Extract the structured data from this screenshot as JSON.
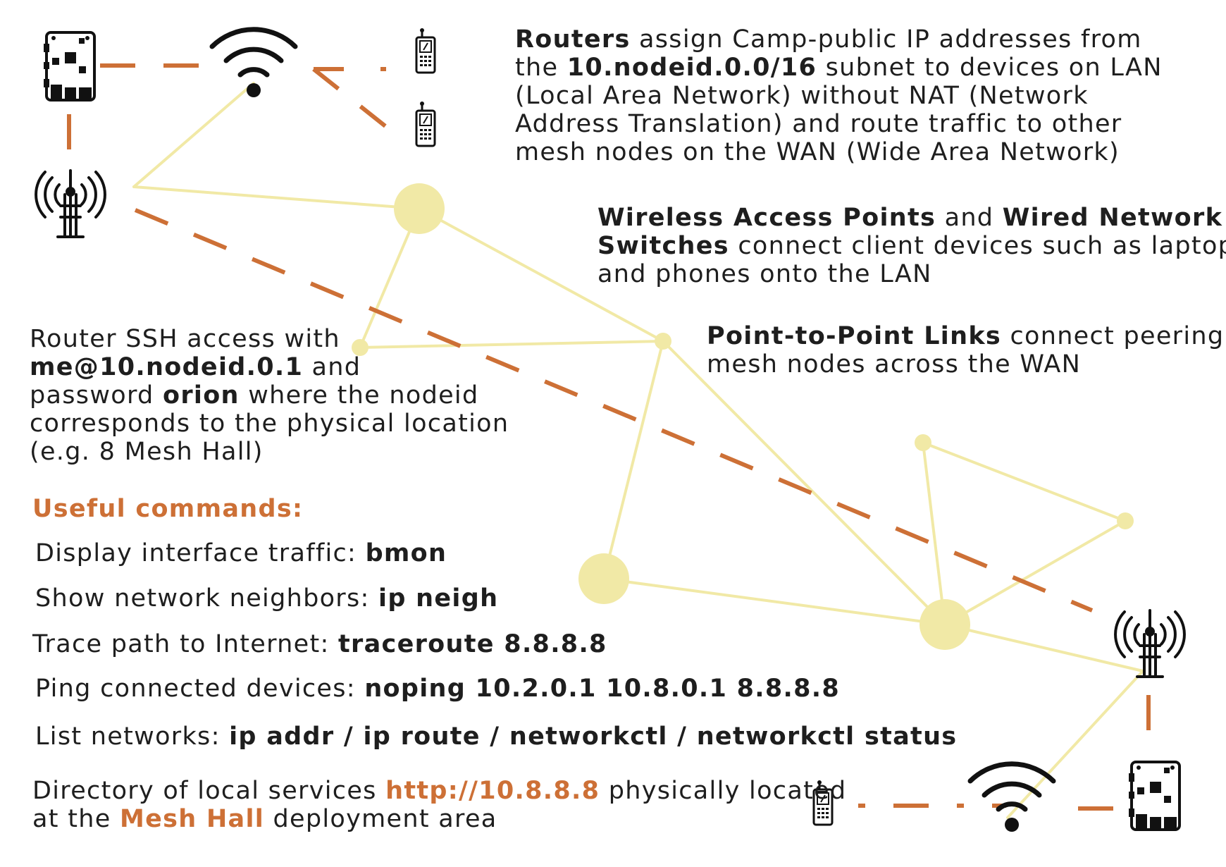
{
  "colors": {
    "accent": "#cd7036",
    "mesh_link": "#f1e9a6",
    "text": "#1e1e1e"
  },
  "icons": [
    "router-board-icon",
    "wifi-icon",
    "phone-icon",
    "antenna-tower-icon"
  ],
  "routers_note": {
    "b1": "Routers",
    "t1": " assign Camp-public IP addresses from",
    "t2": "the ",
    "b2": "10.nodeid.0.0/16",
    "t3": " subnet to devices on LAN",
    "t4": "(Local Area Network) without NAT (Network",
    "t5": "Address Translation) and route traffic to other",
    "t6": "mesh nodes on the WAN (Wide Area Network)"
  },
  "access_note": {
    "b1": "Wireless Access Points",
    "t1": " and ",
    "b2": "Wired Network",
    "b3": "Switches",
    "t2": " connect client devices such as laptops",
    "t3": "and phones onto the LAN"
  },
  "ptp_note": {
    "b1": "Point-to-Point Links",
    "t1": " connect peering",
    "t2": "mesh nodes across the WAN"
  },
  "ssh_note": {
    "t1": "Router SSH access with",
    "b1": "me@10.nodeid.0.1",
    "t2": " and",
    "t3": "password ",
    "b2": "orion",
    "t4": " where the nodeid",
    "t5": "corresponds to the physical location",
    "t6": "(e.g. 8 Mesh Hall)"
  },
  "commands": {
    "heading": "Useful commands:",
    "items": [
      {
        "label": "Display interface traffic: ",
        "command": "bmon"
      },
      {
        "label": "Show network neighbors: ",
        "command": "ip neigh"
      },
      {
        "label": "Trace path to Internet: ",
        "command": "traceroute 8.8.8.8"
      },
      {
        "label": "Ping connected devices: ",
        "command": "noping 10.2.0.1 10.8.0.1 8.8.8.8"
      },
      {
        "label": "List networks: ",
        "command": "ip addr / ip route / networkctl / networkctl status"
      }
    ]
  },
  "directory_note": {
    "t1": "Directory of local services ",
    "link": "http://10.8.8.8",
    "t2": " physically located",
    "t3": "at the ",
    "place": "Mesh Hall",
    "t4": " deployment area"
  }
}
